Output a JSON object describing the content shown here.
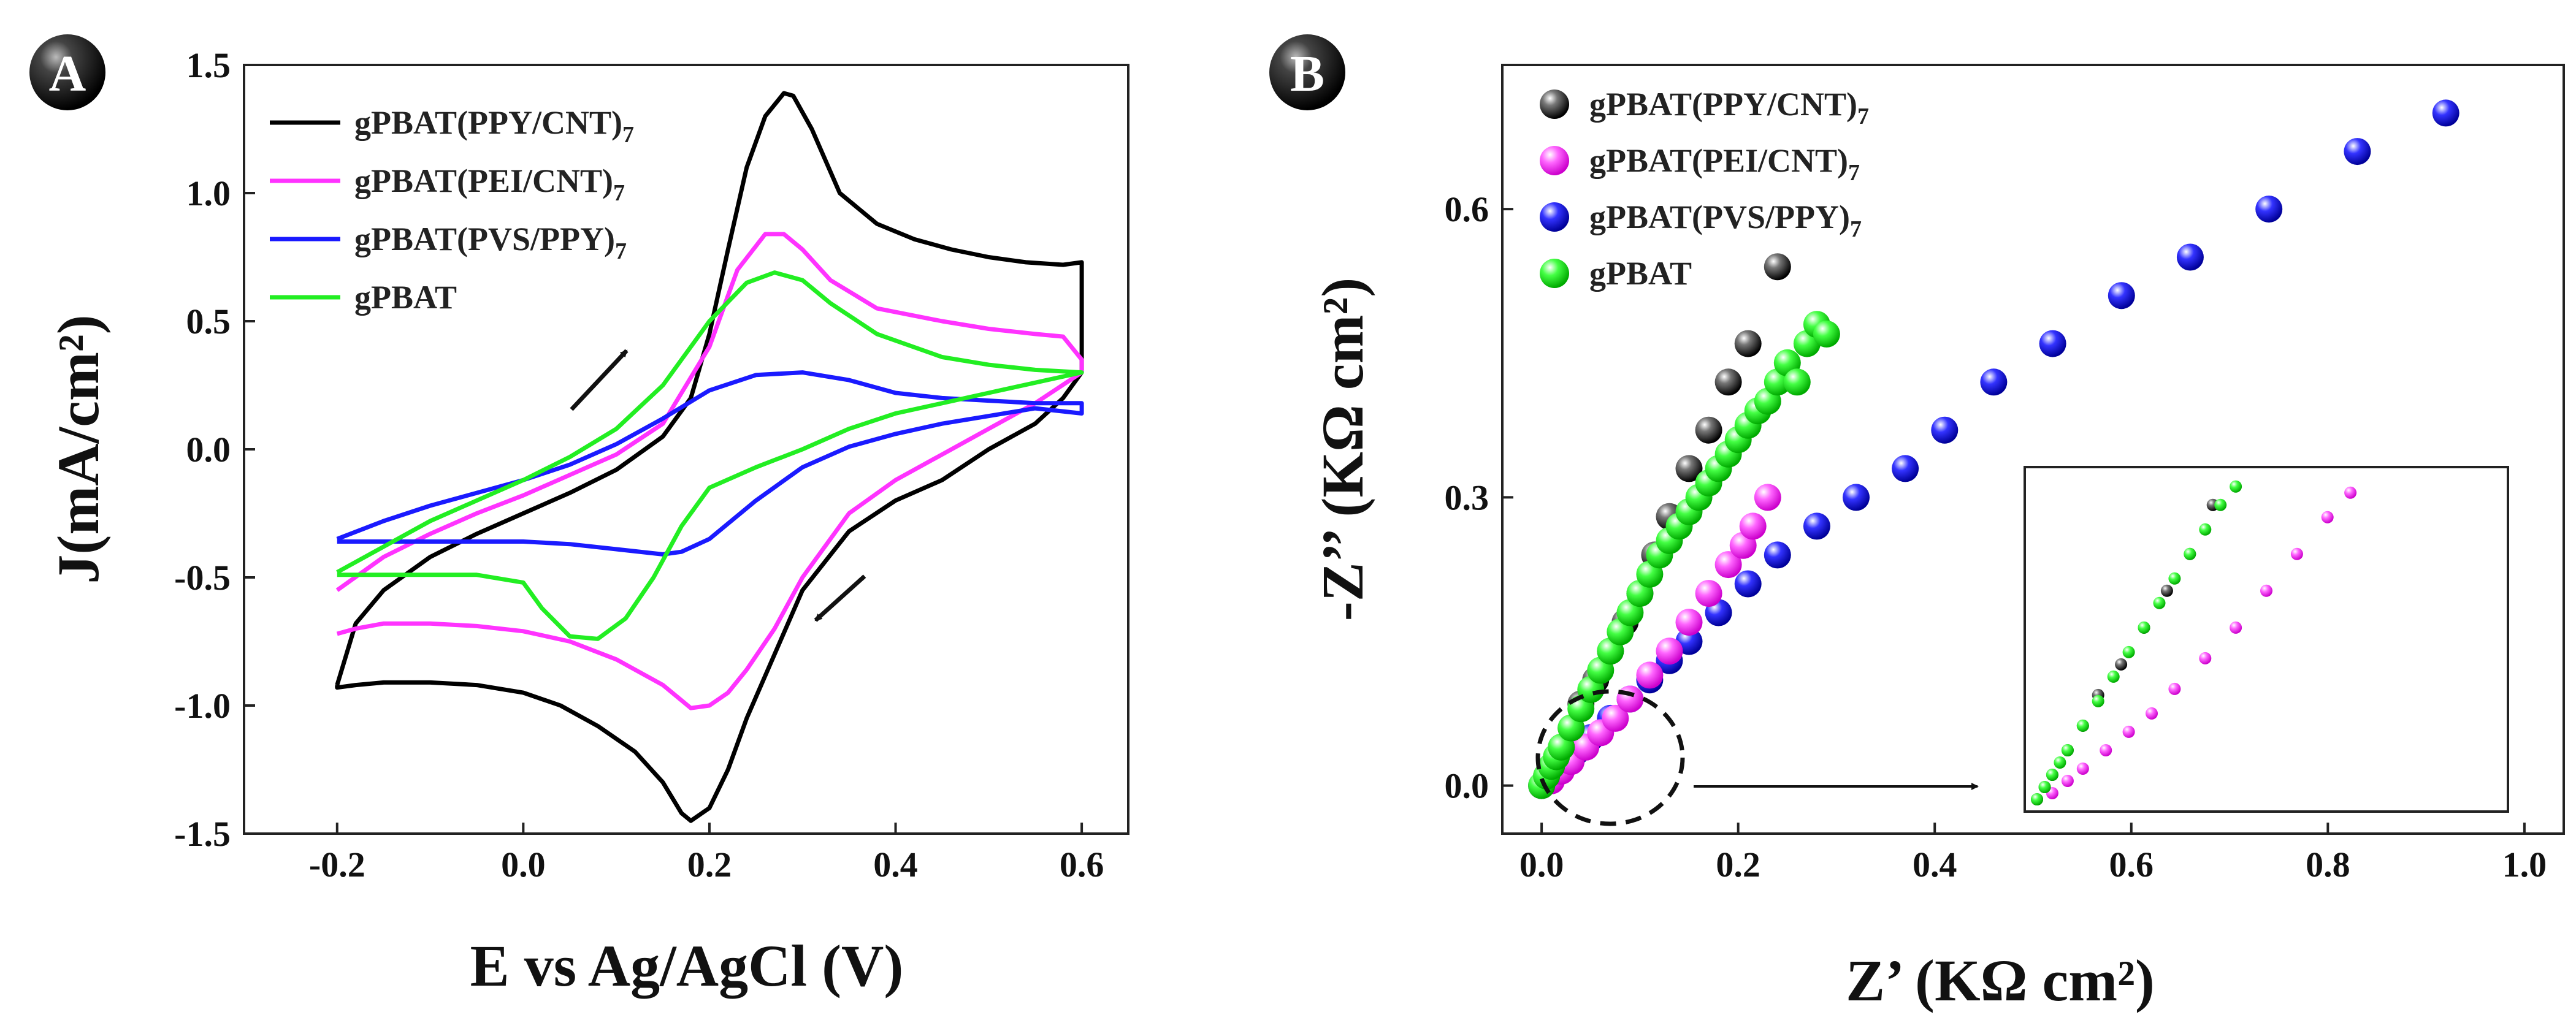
{
  "colors": {
    "ppy_cnt": "#000000",
    "pei_cnt": "#ff33ff",
    "pvs_ppy": "#1a1aff",
    "gpbat": "#22ee22",
    "axis": "#222222"
  },
  "chart_data": [
    {
      "type": "line",
      "panel_label": "A",
      "title": "",
      "xlabel": "E vs Ag/AgCl (V)",
      "ylabel": "J(mA/cm²)",
      "xlim": [
        -0.3,
        0.65
      ],
      "ylim": [
        -1.5,
        1.5
      ],
      "xticks": [
        -0.2,
        0.0,
        0.2,
        0.4,
        0.6
      ],
      "xtick_labels": [
        "-0.2",
        "0.0",
        "0.2",
        "0.4",
        "0.6"
      ],
      "yticks": [
        -1.5,
        -1.0,
        -0.5,
        0.0,
        0.5,
        1.0,
        1.5
      ],
      "ytick_labels": [
        "-1.5",
        "-1.0",
        "-0.5",
        "0.0",
        "0.5",
        "1.0",
        "1.5"
      ],
      "legend_position": "top-left",
      "annotations": [
        "arrow up-right on forward scan",
        "arrow down-left on reverse scan"
      ],
      "series": [
        {
          "key": "ppy_cnt",
          "name": "gPBAT(PPY/CNT)",
          "subscript": "7",
          "x": [
            -0.2,
            -0.18,
            -0.15,
            -0.1,
            -0.05,
            0.0,
            0.05,
            0.1,
            0.15,
            0.18,
            0.2,
            0.22,
            0.24,
            0.26,
            0.28,
            0.29,
            0.31,
            0.34,
            0.38,
            0.42,
            0.46,
            0.5,
            0.54,
            0.58,
            0.6,
            0.6,
            0.58,
            0.55,
            0.5,
            0.45,
            0.4,
            0.35,
            0.3,
            0.27,
            0.24,
            0.22,
            0.2,
            0.18,
            0.17,
            0.15,
            0.12,
            0.08,
            0.04,
            0.0,
            -0.05,
            -0.1,
            -0.15,
            -0.18,
            -0.2,
            -0.2
          ],
          "y": [
            -0.92,
            -0.68,
            -0.55,
            -0.42,
            -0.33,
            -0.25,
            -0.17,
            -0.08,
            0.05,
            0.2,
            0.45,
            0.78,
            1.1,
            1.3,
            1.39,
            1.38,
            1.25,
            1.0,
            0.88,
            0.82,
            0.78,
            0.75,
            0.73,
            0.72,
            0.73,
            0.3,
            0.2,
            0.1,
            0.0,
            -0.12,
            -0.2,
            -0.32,
            -0.55,
            -0.8,
            -1.05,
            -1.25,
            -1.4,
            -1.45,
            -1.42,
            -1.3,
            -1.18,
            -1.08,
            -1.0,
            -0.95,
            -0.92,
            -0.91,
            -0.91,
            -0.92,
            -0.93,
            -0.92
          ]
        },
        {
          "key": "pei_cnt",
          "name": "gPBAT(PEI/CNT)",
          "subscript": "7",
          "x": [
            -0.2,
            -0.15,
            -0.1,
            -0.05,
            0.0,
            0.05,
            0.1,
            0.15,
            0.2,
            0.23,
            0.26,
            0.28,
            0.3,
            0.33,
            0.38,
            0.45,
            0.5,
            0.55,
            0.58,
            0.6,
            0.6,
            0.55,
            0.5,
            0.45,
            0.4,
            0.35,
            0.3,
            0.27,
            0.24,
            0.22,
            0.2,
            0.18,
            0.17,
            0.15,
            0.1,
            0.05,
            0.0,
            -0.05,
            -0.1,
            -0.15,
            -0.18,
            -0.2
          ],
          "y": [
            -0.55,
            -0.42,
            -0.33,
            -0.25,
            -0.18,
            -0.1,
            -0.02,
            0.1,
            0.4,
            0.7,
            0.84,
            0.84,
            0.78,
            0.66,
            0.55,
            0.5,
            0.47,
            0.45,
            0.44,
            0.35,
            0.3,
            0.18,
            0.08,
            -0.02,
            -0.12,
            -0.25,
            -0.5,
            -0.7,
            -0.86,
            -0.95,
            -1.0,
            -1.01,
            -0.98,
            -0.92,
            -0.82,
            -0.75,
            -0.71,
            -0.69,
            -0.68,
            -0.68,
            -0.7,
            -0.72
          ]
        },
        {
          "key": "pvs_ppy",
          "name": "gPBAT(PVS/PPY)",
          "subscript": "7",
          "x": [
            -0.2,
            -0.15,
            -0.1,
            -0.05,
            0.0,
            0.05,
            0.1,
            0.15,
            0.2,
            0.25,
            0.3,
            0.35,
            0.4,
            0.45,
            0.5,
            0.55,
            0.6,
            0.6,
            0.55,
            0.5,
            0.45,
            0.4,
            0.35,
            0.3,
            0.25,
            0.2,
            0.17,
            0.15,
            0.1,
            0.05,
            0.0,
            -0.05,
            -0.1,
            -0.15,
            -0.2
          ],
          "y": [
            -0.35,
            -0.28,
            -0.22,
            -0.17,
            -0.12,
            -0.06,
            0.02,
            0.12,
            0.23,
            0.29,
            0.3,
            0.27,
            0.22,
            0.2,
            0.19,
            0.18,
            0.18,
            0.14,
            0.16,
            0.13,
            0.1,
            0.06,
            0.01,
            -0.07,
            -0.2,
            -0.35,
            -0.4,
            -0.41,
            -0.39,
            -0.37,
            -0.36,
            -0.36,
            -0.36,
            -0.36,
            -0.36
          ]
        },
        {
          "key": "gpbat",
          "name": "gPBAT",
          "subscript": "",
          "x": [
            -0.2,
            -0.15,
            -0.1,
            -0.05,
            0.0,
            0.05,
            0.1,
            0.15,
            0.2,
            0.24,
            0.27,
            0.3,
            0.33,
            0.38,
            0.45,
            0.5,
            0.55,
            0.6,
            0.6,
            0.55,
            0.5,
            0.45,
            0.4,
            0.35,
            0.3,
            0.25,
            0.2,
            0.17,
            0.14,
            0.11,
            0.08,
            0.05,
            0.02,
            0.0,
            -0.05,
            -0.1,
            -0.15,
            -0.2
          ],
          "y": [
            -0.48,
            -0.38,
            -0.28,
            -0.2,
            -0.12,
            -0.03,
            0.08,
            0.25,
            0.5,
            0.65,
            0.69,
            0.66,
            0.57,
            0.45,
            0.36,
            0.33,
            0.31,
            0.3,
            0.3,
            0.26,
            0.22,
            0.18,
            0.14,
            0.08,
            0.0,
            -0.07,
            -0.15,
            -0.3,
            -0.5,
            -0.66,
            -0.74,
            -0.73,
            -0.62,
            -0.52,
            -0.49,
            -0.49,
            -0.49,
            -0.49
          ]
        }
      ]
    },
    {
      "type": "scatter",
      "panel_label": "B",
      "title": "",
      "xlabel": "Z’ (KΩ cm²)",
      "ylabel": "-Z’’ (KΩ cm²)",
      "xlim": [
        -0.04,
        1.04
      ],
      "ylim": [
        -0.05,
        0.75
      ],
      "xticks": [
        0.0,
        0.2,
        0.4,
        0.6,
        0.8,
        1.0
      ],
      "xtick_labels": [
        "0.0",
        "0.2",
        "0.4",
        "0.6",
        "0.8",
        "1.0"
      ],
      "yticks": [
        0.0,
        0.3,
        0.6
      ],
      "ytick_labels": [
        "0.0",
        "0.3",
        "0.6"
      ],
      "legend_position": "top-left",
      "annotations": [
        "dashed circle highlighting the low-impedance region, arrow pointing to the inset enlargement (bottom-right)"
      ],
      "series": [
        {
          "key": "ppy_cnt",
          "name": "gPBAT(PPY/CNT)",
          "subscript": "7",
          "x": [
            0.0,
            0.005,
            0.01,
            0.02,
            0.03,
            0.04,
            0.055,
            0.07,
            0.085,
            0.1,
            0.115,
            0.13,
            0.15,
            0.17,
            0.19,
            0.21,
            0.24
          ],
          "y": [
            0.0,
            0.01,
            0.02,
            0.04,
            0.06,
            0.085,
            0.11,
            0.14,
            0.17,
            0.2,
            0.24,
            0.28,
            0.33,
            0.37,
            0.42,
            0.46,
            0.54
          ]
        },
        {
          "key": "pei_cnt",
          "name": "gPBAT(PEI/CNT)",
          "subscript": "7",
          "x": [
            0.0,
            0.01,
            0.02,
            0.03,
            0.045,
            0.06,
            0.075,
            0.09,
            0.11,
            0.13,
            0.15,
            0.17,
            0.19,
            0.205,
            0.215,
            0.23
          ],
          "y": [
            0.0,
            0.005,
            0.015,
            0.025,
            0.04,
            0.055,
            0.07,
            0.09,
            0.115,
            0.14,
            0.17,
            0.2,
            0.23,
            0.25,
            0.27,
            0.3
          ]
        },
        {
          "key": "pvs_ppy",
          "name": "gPBAT(PVS/PPY)",
          "subscript": "7",
          "x": [
            0.0,
            0.01,
            0.02,
            0.035,
            0.05,
            0.07,
            0.09,
            0.11,
            0.13,
            0.15,
            0.18,
            0.21,
            0.24,
            0.28,
            0.32,
            0.37,
            0.41,
            0.46,
            0.52,
            0.59,
            0.66,
            0.74,
            0.83,
            0.92
          ],
          "y": [
            0.0,
            0.01,
            0.02,
            0.035,
            0.05,
            0.07,
            0.09,
            0.11,
            0.13,
            0.15,
            0.18,
            0.21,
            0.24,
            0.27,
            0.3,
            0.33,
            0.37,
            0.42,
            0.46,
            0.51,
            0.55,
            0.6,
            0.66,
            0.7
          ]
        },
        {
          "key": "gpbat",
          "name": "gPBAT",
          "subscript": "",
          "x": [
            0.0,
            0.005,
            0.01,
            0.015,
            0.02,
            0.03,
            0.04,
            0.05,
            0.06,
            0.07,
            0.08,
            0.09,
            0.1,
            0.11,
            0.12,
            0.13,
            0.14,
            0.15,
            0.16,
            0.17,
            0.18,
            0.19,
            0.2,
            0.21,
            0.22,
            0.23,
            0.24,
            0.25,
            0.26,
            0.27,
            0.28,
            0.29
          ],
          "y": [
            0.0,
            0.01,
            0.02,
            0.03,
            0.04,
            0.06,
            0.08,
            0.1,
            0.12,
            0.14,
            0.16,
            0.18,
            0.2,
            0.22,
            0.24,
            0.255,
            0.27,
            0.285,
            0.3,
            0.315,
            0.33,
            0.345,
            0.36,
            0.375,
            0.39,
            0.4,
            0.42,
            0.44,
            0.42,
            0.46,
            0.48,
            0.47
          ]
        }
      ]
    }
  ]
}
